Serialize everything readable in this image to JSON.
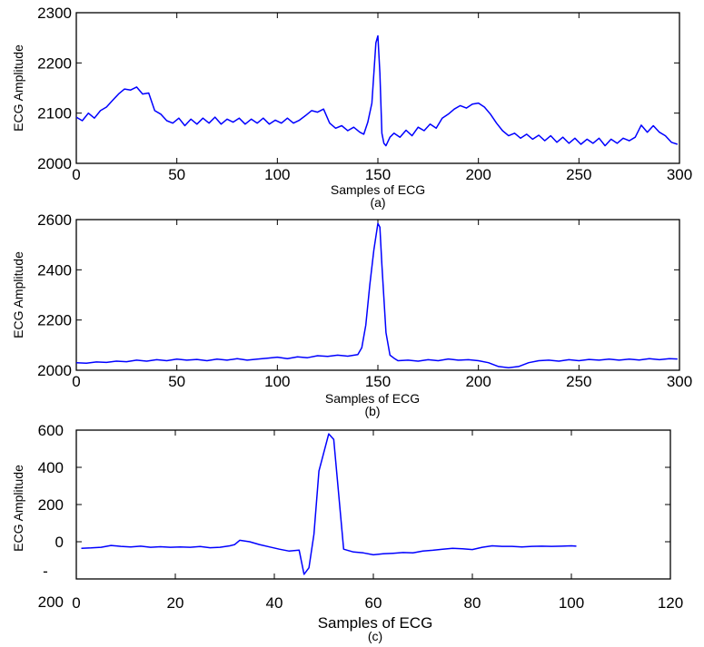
{
  "chart_data": [
    {
      "type": "line",
      "caption": "(a)",
      "xlabel": "Samples of ECG",
      "ylabel": "ECG Amplitude",
      "xlim": [
        0,
        300
      ],
      "ylim": [
        2000,
        2300
      ],
      "xticks": [
        "0",
        "50",
        "100",
        "150",
        "200",
        "250",
        "300"
      ],
      "yticks": [
        "2000",
        "2100",
        "2200",
        "2300"
      ],
      "grid": false,
      "series": [
        {
          "color": "#0000ff",
          "x": [
            0,
            3,
            6,
            9,
            12,
            15,
            18,
            21,
            24,
            27,
            30,
            33,
            36,
            39,
            42,
            45,
            48,
            51,
            54,
            57,
            60,
            63,
            66,
            69,
            72,
            75,
            78,
            81,
            84,
            87,
            90,
            93,
            96,
            99,
            102,
            105,
            108,
            111,
            114,
            117,
            120,
            123,
            126,
            129,
            132,
            135,
            138,
            141,
            143,
            145,
            147,
            149,
            150,
            151,
            152,
            153,
            154,
            156,
            158,
            161,
            164,
            167,
            170,
            173,
            176,
            179,
            182,
            185,
            188,
            191,
            194,
            197,
            200,
            203,
            206,
            209,
            212,
            215,
            218,
            221,
            224,
            227,
            230,
            233,
            236,
            239,
            242,
            245,
            248,
            251,
            254,
            257,
            260,
            263,
            266,
            269,
            272,
            275,
            278,
            281,
            284,
            287,
            290,
            293,
            296,
            299
          ],
          "y": [
            2092,
            2085,
            2100,
            2090,
            2105,
            2112,
            2125,
            2138,
            2148,
            2146,
            2152,
            2138,
            2140,
            2105,
            2098,
            2085,
            2080,
            2090,
            2075,
            2088,
            2078,
            2090,
            2080,
            2092,
            2078,
            2088,
            2082,
            2090,
            2078,
            2088,
            2080,
            2090,
            2078,
            2086,
            2080,
            2090,
            2080,
            2086,
            2095,
            2105,
            2102,
            2108,
            2080,
            2070,
            2075,
            2065,
            2072,
            2062,
            2058,
            2082,
            2120,
            2240,
            2254,
            2180,
            2060,
            2040,
            2035,
            2052,
            2060,
            2052,
            2066,
            2055,
            2072,
            2065,
            2078,
            2070,
            2090,
            2098,
            2108,
            2115,
            2110,
            2118,
            2120,
            2112,
            2098,
            2080,
            2065,
            2055,
            2060,
            2050,
            2058,
            2048,
            2056,
            2045,
            2055,
            2042,
            2052,
            2040,
            2050,
            2038,
            2048,
            2040,
            2050,
            2035,
            2048,
            2040,
            2050,
            2045,
            2052,
            2076,
            2062,
            2075,
            2062,
            2055,
            2042,
            2038
          ]
        }
      ]
    },
    {
      "type": "line",
      "caption": "(b)",
      "xlabel": "Samples of ECG",
      "ylabel": "ECG Amplitude",
      "xlim": [
        0,
        300
      ],
      "ylim": [
        2000,
        2600
      ],
      "xticks": [
        "0",
        "50",
        "100",
        "150",
        "200",
        "250",
        "300"
      ],
      "yticks": [
        "2000",
        "2200",
        "2400",
        "2600"
      ],
      "grid": false,
      "series": [
        {
          "color": "#0000ff",
          "x": [
            0,
            5,
            10,
            15,
            20,
            25,
            30,
            35,
            40,
            45,
            50,
            55,
            60,
            65,
            70,
            75,
            80,
            85,
            90,
            95,
            100,
            105,
            110,
            115,
            120,
            125,
            130,
            135,
            140,
            142,
            144,
            146,
            148,
            150,
            151,
            152,
            154,
            156,
            158,
            160,
            165,
            170,
            175,
            180,
            185,
            190,
            195,
            200,
            205,
            210,
            215,
            220,
            225,
            230,
            235,
            240,
            245,
            250,
            255,
            260,
            265,
            270,
            275,
            280,
            285,
            290,
            295,
            299
          ],
          "y": [
            2030,
            2028,
            2033,
            2031,
            2036,
            2034,
            2040,
            2036,
            2042,
            2038,
            2044,
            2040,
            2043,
            2038,
            2044,
            2040,
            2046,
            2040,
            2044,
            2048,
            2052,
            2046,
            2053,
            2050,
            2058,
            2055,
            2060,
            2056,
            2062,
            2090,
            2180,
            2340,
            2480,
            2585,
            2570,
            2420,
            2150,
            2060,
            2048,
            2038,
            2040,
            2036,
            2042,
            2038,
            2045,
            2040,
            2042,
            2038,
            2030,
            2015,
            2010,
            2015,
            2030,
            2038,
            2040,
            2036,
            2042,
            2038,
            2043,
            2040,
            2044,
            2040,
            2044,
            2041,
            2046,
            2042,
            2046,
            2045
          ]
        }
      ]
    },
    {
      "type": "line",
      "caption": "(c)",
      "xlabel": "Samples of ECG",
      "ylabel": "ECG Amplitude",
      "xlim": [
        0,
        120
      ],
      "ylim": [
        -200,
        600
      ],
      "xticks": [
        "0",
        "20",
        "40",
        "60",
        "80",
        "100",
        "120"
      ],
      "yticks": [
        "600",
        "400",
        "200",
        "0"
      ],
      "ytick_bottom_lines": [
        "-",
        "200"
      ],
      "grid": false,
      "series": [
        {
          "color": "#0000ff",
          "x": [
            1,
            3,
            5,
            7,
            9,
            11,
            13,
            15,
            17,
            19,
            21,
            23,
            25,
            27,
            29,
            31,
            32,
            33,
            35,
            37,
            39,
            41,
            43,
            45,
            46,
            47,
            48,
            49,
            50,
            51,
            52,
            54,
            56,
            58,
            60,
            62,
            64,
            66,
            68,
            70,
            72,
            74,
            76,
            78,
            80,
            82,
            84,
            86,
            88,
            90,
            92,
            94,
            96,
            98,
            100,
            101
          ],
          "y": [
            -35,
            -33,
            -30,
            -20,
            -25,
            -28,
            -24,
            -30,
            -27,
            -30,
            -28,
            -30,
            -26,
            -32,
            -30,
            -22,
            -15,
            8,
            0,
            -15,
            -28,
            -40,
            -50,
            -45,
            -175,
            -140,
            40,
            380,
            480,
            580,
            550,
            -40,
            -55,
            -60,
            -70,
            -65,
            -62,
            -58,
            -60,
            -50,
            -46,
            -40,
            -35,
            -38,
            -42,
            -30,
            -22,
            -25,
            -25,
            -28,
            -25,
            -24,
            -25,
            -24,
            -22,
            -24
          ]
        }
      ]
    }
  ]
}
